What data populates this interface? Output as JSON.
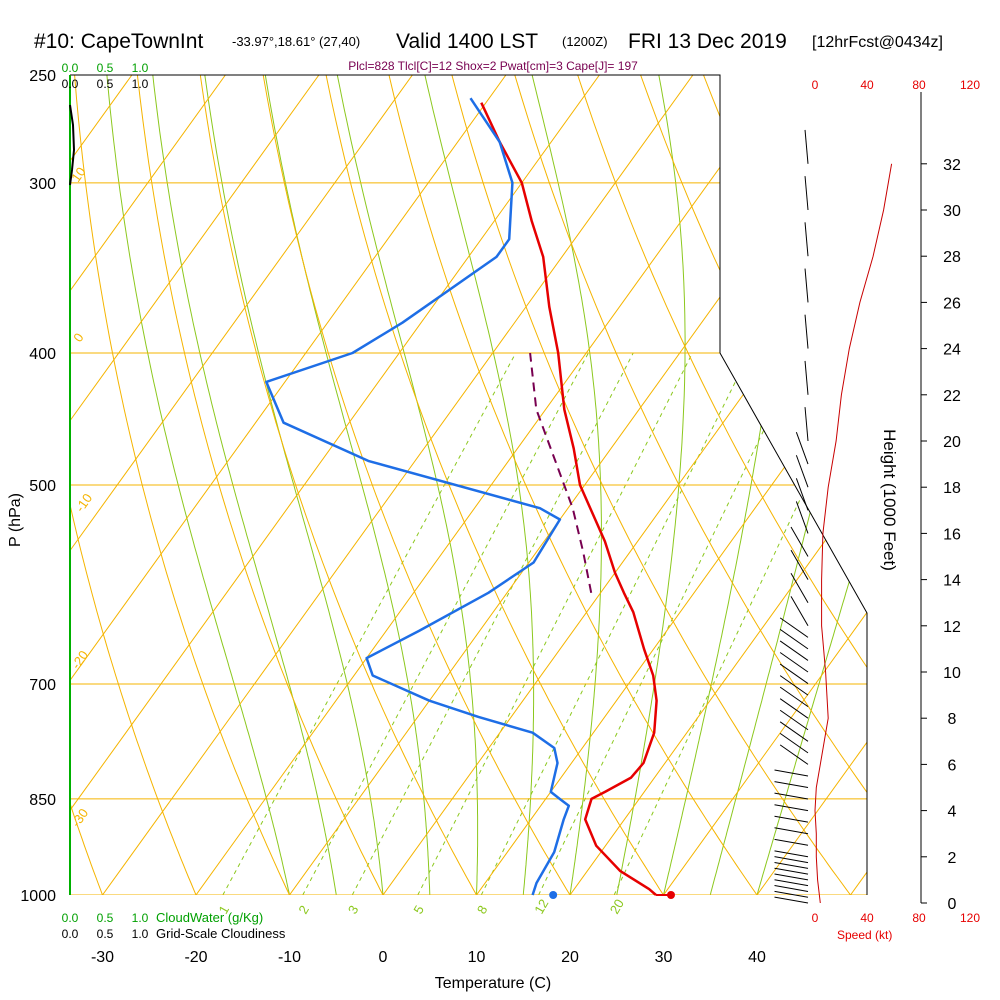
{
  "header": {
    "station": "#10: CapeTownInt",
    "coords": "-33.97°,18.61° (27,40)",
    "valid": "Valid 1400 LST",
    "zulu": "(1200Z)",
    "date": "FRI 13 Dec 2019",
    "forecast": "[12hrFcst@0434z]"
  },
  "indices": "Plcl=828 Tlcl[C]=12 Shox=2 Pwat[cm]=3 Cape[J]= 197",
  "colors": {
    "isobar": "#f5b400",
    "dry_adiabat": "#f5b400",
    "moist_adiabat": "#8cc81e",
    "mixing_ratio": "#8cc81e",
    "temperature": "#e60000",
    "dewpoint": "#1e6ee6",
    "parcel": "#780050",
    "cloud_water": "#00a000",
    "wind_speed": "#c80000"
  },
  "chart_data": {
    "type": "line",
    "title": "Skew-T log-P sounding",
    "xlabel": "Temperature (C)",
    "ylabel": "P (hPa)",
    "xlim": [
      -35,
      52
    ],
    "ylim": [
      1000,
      250
    ],
    "x_ticks": [
      "-30",
      "-20",
      "-10",
      "0",
      "10",
      "20",
      "30",
      "40"
    ],
    "pressure_ticks": [
      "250",
      "300",
      "400",
      "500",
      "700",
      "850",
      "1000"
    ],
    "height_axis": {
      "label": "Height (1000 Feet)",
      "ticks": [
        "0",
        "2",
        "4",
        "6",
        "8",
        "10",
        "12",
        "14",
        "16",
        "18",
        "20",
        "22",
        "24",
        "26",
        "28",
        "30",
        "32"
      ]
    },
    "cloud_water_scale": {
      "label": "CloudWater (g/Kg)",
      "ticks": [
        "0.0",
        "0.5",
        "1.0"
      ]
    },
    "cloudiness_scale": {
      "label": "Grid-Scale Cloudiness",
      "ticks": [
        "0.0",
        "0.5",
        "1.0"
      ]
    },
    "wind_speed_scale": {
      "label": "Speed (kt)",
      "ticks": [
        "0",
        "40",
        "80",
        "120"
      ]
    },
    "dry_adiabat_labels": [
      "10",
      "0",
      "-10",
      "-20",
      "-30",
      "0",
      "10",
      "20",
      "30"
    ],
    "mixing_ratio_labels": [
      "1",
      "2",
      "3",
      "5",
      "8",
      "12",
      "20"
    ],
    "series": [
      {
        "name": "temperature",
        "p": [
          1000,
          990,
          960,
          920,
          880,
          850,
          840,
          820,
          800,
          760,
          720,
          690,
          660,
          620,
          600,
          580,
          550,
          500,
          470,
          440,
          400,
          370,
          340,
          320,
          300,
          280,
          262
        ],
        "t": [
          29.2,
          28.0,
          23.5,
          19.0,
          15.8,
          14.9,
          15.8,
          17.5,
          17.7,
          16.5,
          14.3,
          12.0,
          9.0,
          5.0,
          2.5,
          0.0,
          -3.5,
          -10.5,
          -14.0,
          -18.0,
          -23.0,
          -27.5,
          -32.0,
          -36.0,
          -40.0,
          -45.5,
          -50.5
        ]
      },
      {
        "name": "dewpoint",
        "p": [
          1000,
          980,
          930,
          880,
          860,
          850,
          840,
          800,
          780,
          760,
          740,
          720,
          690,
          670,
          640,
          600,
          570,
          530,
          520,
          480,
          450,
          420,
          400,
          380,
          340,
          330,
          300,
          280,
          260
        ],
        "td": [
          16.0,
          15.5,
          15.0,
          13.5,
          13.0,
          11.5,
          10.0,
          8.5,
          7.0,
          3.5,
          -3.5,
          -10.0,
          -18.0,
          -20.0,
          -16.5,
          -12.0,
          -9.5,
          -10.0,
          -13.0,
          -35.0,
          -47.0,
          -52.0,
          -45.0,
          -42.0,
          -37.0,
          -37.0,
          -41.0,
          -45.5,
          -52.0
        ]
      },
      {
        "name": "parcel",
        "p": [
          600,
          560,
          520,
          480,
          440,
          400
        ],
        "t": [
          -1.0,
          -5.0,
          -9.5,
          -15.0,
          -21.0,
          -26.0
        ]
      }
    ],
    "surface_points": {
      "t": 30.8,
      "td": 18.2,
      "p": 1000
    },
    "wind_speed": {
      "height_kft": [
        0,
        1,
        2,
        3,
        4,
        5,
        6,
        8,
        10,
        12,
        14,
        16,
        18,
        20,
        22,
        24,
        26,
        28,
        30,
        32
      ],
      "speed_kt": [
        4,
        2,
        1,
        1,
        0,
        1,
        4,
        10,
        8,
        5,
        5,
        6,
        10,
        16,
        20,
        26,
        34,
        44,
        52,
        58
      ]
    }
  }
}
